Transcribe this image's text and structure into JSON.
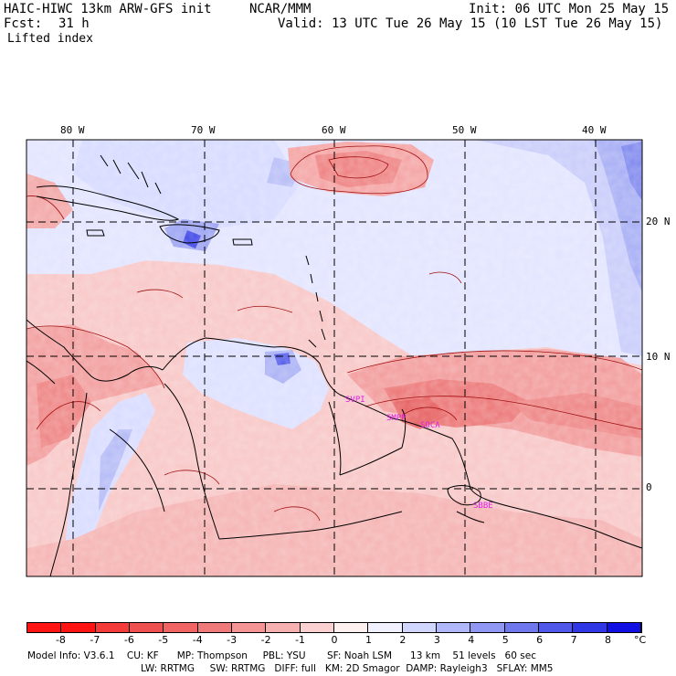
{
  "header": {
    "model_title": "HAIC-HIWC 13km ARW-GFS init",
    "org": "NCAR/MMM",
    "init": "Init: 06 UTC Mon 25 May 15",
    "fcst_label": "Fcst:",
    "fcst_value": "31 h",
    "valid": "Valid: 13 UTC Tue 26 May 15 (10 LST Tue 26 May 15)",
    "field": "Lifted index"
  },
  "map": {
    "lon_labels": [
      "80 W",
      "70 W",
      "60 W",
      "50 W",
      "40 W"
    ],
    "lat_labels": [
      "20 N",
      "10 N",
      "0"
    ],
    "stations": [
      "SVPI",
      "SMPP",
      "SOCA",
      "SBBE"
    ],
    "station_color": "#e020e0"
  },
  "colorbar": {
    "labels": [
      "-8",
      "-7",
      "-6",
      "-5",
      "-4",
      "-3",
      "-2",
      "-1",
      "0",
      "1",
      "2",
      "3",
      "4",
      "5",
      "6",
      "7",
      "8"
    ],
    "unit": "°C",
    "colors": [
      "#ff1414",
      "#f53a3a",
      "#ee5050",
      "#f06464",
      "#f07a7a",
      "#f49494",
      "#f7b0b0",
      "#fad0d0",
      "#fff0f0",
      "#f0f0ff",
      "#d0d6ff",
      "#b0b8fa",
      "#9098f4",
      "#7078ee",
      "#5058ea",
      "#3038e6",
      "#1010e4"
    ]
  },
  "footer": {
    "line1": "Model Info: V3.6.1    CU: KF      MP: Thompson     PBL: YSU       SF: Noah LSM      13 km    51 levels   60 sec",
    "line2": "LW: RRTMG     SW: RRTMG   DIFF: full   KM: 2D Smagor  DAMP: Rayleigh3   SFLAY: MM5"
  }
}
